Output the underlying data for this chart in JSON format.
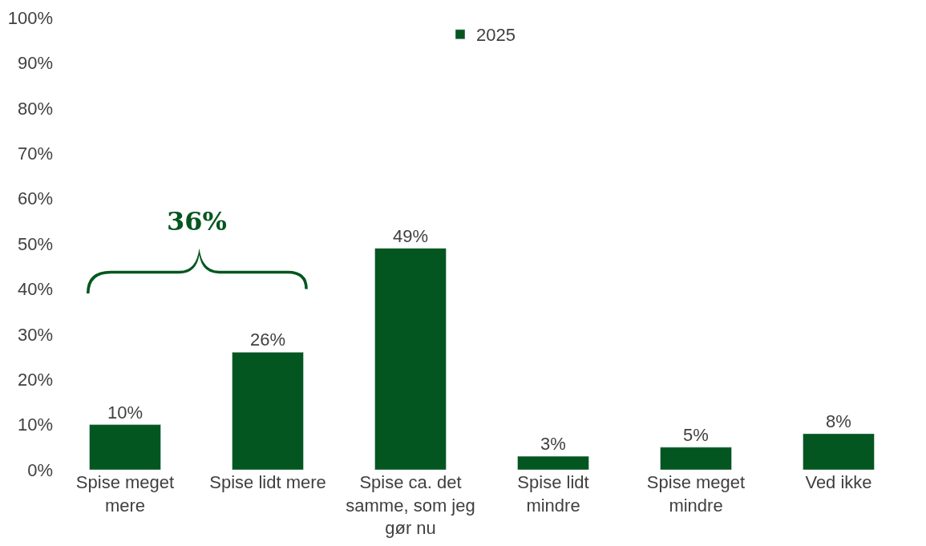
{
  "chart_data": {
    "type": "bar",
    "categories": [
      "Spise meget mere",
      "Spise lidt mere",
      "Spise ca. det samme, som jeg gør nu",
      "Spise lidt mindre",
      "Spise meget mindre",
      "Ved ikke"
    ],
    "series": [
      {
        "name": "2025",
        "color": "#03561f",
        "values": [
          10,
          26,
          49,
          3,
          5,
          8
        ],
        "value_labels": [
          "10%",
          "26%",
          "49%",
          "3%",
          "5%",
          "8%"
        ]
      }
    ],
    "ylim": [
      0,
      100
    ],
    "yticks": [
      {
        "value": 0,
        "label": "0%"
      },
      {
        "value": 10,
        "label": "10%"
      },
      {
        "value": 20,
        "label": "20%"
      },
      {
        "value": 30,
        "label": "30%"
      },
      {
        "value": 40,
        "label": "40%"
      },
      {
        "value": 50,
        "label": "50%"
      },
      {
        "value": 60,
        "label": "60%"
      },
      {
        "value": 70,
        "label": "70%"
      },
      {
        "value": 80,
        "label": "80%"
      },
      {
        "value": 90,
        "label": "90%"
      },
      {
        "value": 100,
        "label": "100%"
      }
    ],
    "annotations": [
      "36%"
    ],
    "legend": "top",
    "grid": false
  }
}
